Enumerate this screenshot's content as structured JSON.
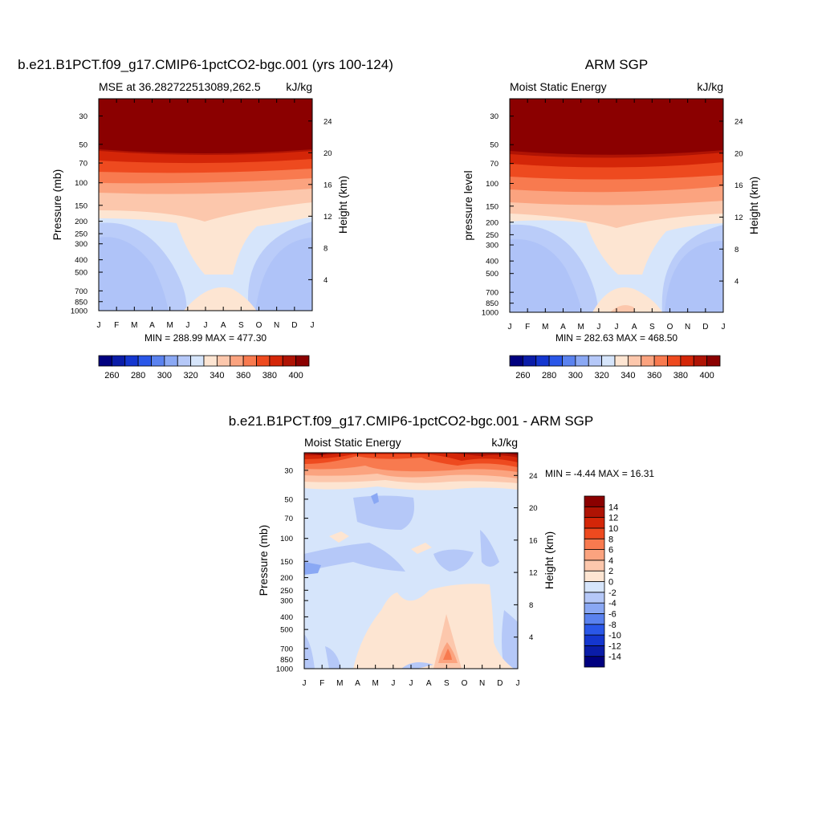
{
  "chart_data": [
    {
      "type": "heatmap",
      "title": "b.e21.B1PCT.f09_g17.CMIP6-1pctCO2-bgc.001 (yrs 100-124)",
      "subtitle_left": "MSE at 36.282722513089,262.5",
      "subtitle_right": "kJ/kg",
      "ylabel": "Pressure (mb)",
      "ylabel_right": "Height (km)",
      "x_ticks": [
        "J",
        "F",
        "M",
        "A",
        "M",
        "J",
        "J",
        "A",
        "S",
        "O",
        "N",
        "D",
        "J"
      ],
      "y_ticks": [
        30,
        50,
        70,
        100,
        150,
        200,
        250,
        300,
        400,
        500,
        700,
        850,
        1000
      ],
      "y2_ticks": [
        4,
        8,
        12,
        16,
        20,
        24
      ],
      "ylim": [
        1000,
        22
      ],
      "stats": "MIN = 288.99 MAX = 477.30",
      "colorbar": {
        "levels": [
          260,
          270,
          280,
          290,
          300,
          310,
          320,
          330,
          340,
          350,
          360,
          370,
          380,
          390,
          400
        ],
        "tick_labels": [
          "260",
          "280",
          "300",
          "320",
          "340",
          "360",
          "380",
          "400"
        ],
        "colors": [
          "#00007f",
          "#0a1ca8",
          "#1436cf",
          "#2a57e8",
          "#5a82ef",
          "#8aa8f4",
          "#b5c8f8",
          "#d6e5fb",
          "#fde5d2",
          "#fcc7ac",
          "#fba37f",
          "#f87a4f",
          "#ee4a1f",
          "#d42608",
          "#af1304",
          "#8b0000"
        ]
      },
      "grid": false,
      "legend": "bottom"
    },
    {
      "type": "heatmap",
      "title": "ARM SGP",
      "subtitle_left": "Moist Static Energy",
      "subtitle_right": "kJ/kg",
      "ylabel": "pressure level",
      "ylabel_right": "Height (km)",
      "x_ticks": [
        "J",
        "F",
        "M",
        "A",
        "M",
        "J",
        "J",
        "A",
        "S",
        "O",
        "N",
        "D",
        "J"
      ],
      "y_ticks": [
        30,
        50,
        70,
        100,
        150,
        200,
        250,
        300,
        400,
        500,
        700,
        850,
        1000
      ],
      "y2_ticks": [
        4,
        8,
        12,
        16,
        20,
        24
      ],
      "ylim": [
        1000,
        22
      ],
      "stats": "MIN = 282.63 MAX = 468.50",
      "colorbar": {
        "levels": [
          260,
          270,
          280,
          290,
          300,
          310,
          320,
          330,
          340,
          350,
          360,
          370,
          380,
          390,
          400
        ],
        "tick_labels": [
          "260",
          "280",
          "300",
          "320",
          "340",
          "360",
          "380",
          "400"
        ],
        "colors": [
          "#00007f",
          "#0a1ca8",
          "#1436cf",
          "#2a57e8",
          "#5a82ef",
          "#8aa8f4",
          "#b5c8f8",
          "#d6e5fb",
          "#fde5d2",
          "#fcc7ac",
          "#fba37f",
          "#f87a4f",
          "#ee4a1f",
          "#d42608",
          "#af1304",
          "#8b0000"
        ]
      },
      "grid": false,
      "legend": "bottom"
    },
    {
      "type": "heatmap",
      "title": "b.e21.B1PCT.f09_g17.CMIP6-1pctCO2-bgc.001 - ARM SGP",
      "subtitle_left": "Moist Static Energy",
      "subtitle_right": "kJ/kg",
      "ylabel": "Pressure (mb)",
      "ylabel_right": "Height (km)",
      "x_ticks": [
        "J",
        "F",
        "M",
        "A",
        "M",
        "J",
        "J",
        "A",
        "S",
        "O",
        "N",
        "D",
        "J"
      ],
      "y_ticks": [
        30,
        50,
        70,
        100,
        150,
        200,
        250,
        300,
        400,
        500,
        700,
        850,
        1000
      ],
      "y2_ticks": [
        4,
        8,
        12,
        16,
        20,
        24
      ],
      "ylim": [
        1000,
        22
      ],
      "stats": "MIN =  -4.44 MAX =  16.31",
      "colorbar": {
        "levels": [
          -14,
          -12,
          -10,
          -8,
          -6,
          -4,
          -2,
          0,
          2,
          4,
          6,
          8,
          10,
          12,
          14
        ],
        "tick_labels": [
          "14",
          "12",
          "10",
          "8",
          "6",
          "4",
          "2",
          "0",
          "-2",
          "-4",
          "-6",
          "-8",
          "-10",
          "-12",
          "-14"
        ],
        "colors": [
          "#00007f",
          "#0a1ca8",
          "#1436cf",
          "#2a57e8",
          "#5a82ef",
          "#8aa8f4",
          "#b5c8f8",
          "#d6e5fb",
          "#fde5d2",
          "#fcc7ac",
          "#fba37f",
          "#f87a4f",
          "#ee4a1f",
          "#d42608",
          "#af1304",
          "#8b0000"
        ]
      },
      "grid": false,
      "legend": "right"
    }
  ]
}
